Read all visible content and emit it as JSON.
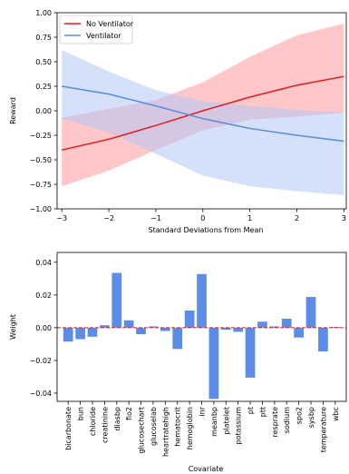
{
  "chart_data": [
    {
      "type": "line",
      "xlabel": "Standard Deviations from Mean",
      "ylabel": "Reward",
      "xlim": [
        -3.1,
        3.05
      ],
      "ylim": [
        -1.0,
        1.0
      ],
      "x_ticks": [
        -3,
        -2,
        -1,
        0,
        1,
        2,
        3
      ],
      "x_tick_labels": [
        "−3",
        "−2",
        "−1",
        "0",
        "1",
        "2",
        "3"
      ],
      "y_ticks": [
        -1.0,
        -0.75,
        -0.5,
        -0.25,
        0.0,
        0.25,
        0.5,
        0.75,
        1.0
      ],
      "y_tick_labels": [
        "−1.00",
        "−0.75",
        "−0.50",
        "−0.25",
        "0.00",
        "0.25",
        "0.50",
        "0.75",
        "1.00"
      ],
      "grid": false,
      "legend_position": "top-left",
      "series": [
        {
          "name": "No Ventilator",
          "color": "#e31a1c",
          "band_color": "#ff9999",
          "x": [
            -3,
            -2,
            -1,
            0,
            1,
            2,
            3
          ],
          "y": [
            -0.4,
            -0.29,
            -0.15,
            0.0,
            0.14,
            0.26,
            0.35
          ],
          "lower": [
            -0.77,
            -0.61,
            -0.4,
            -0.2,
            -0.09,
            -0.06,
            -0.02
          ],
          "upper": [
            -0.07,
            0.02,
            0.11,
            0.29,
            0.55,
            0.77,
            0.89
          ]
        },
        {
          "name": "Ventilator",
          "color": "#5b8bd9",
          "band_color": "#b3c6f5",
          "x": [
            -3,
            -2,
            -1,
            0,
            1,
            2,
            3
          ],
          "y": [
            0.25,
            0.17,
            0.05,
            -0.08,
            -0.18,
            -0.25,
            -0.31
          ],
          "lower": [
            -0.08,
            -0.22,
            -0.44,
            -0.66,
            -0.77,
            -0.82,
            -0.86
          ],
          "upper": [
            0.62,
            0.4,
            0.21,
            0.1,
            0.05,
            0.01,
            -0.02
          ]
        }
      ]
    },
    {
      "type": "bar",
      "xlabel": "Covariate",
      "ylabel": "Weight",
      "ylim": [
        -0.045,
        0.046
      ],
      "y_ticks": [
        -0.04,
        -0.02,
        0.0,
        0.02,
        0.04
      ],
      "y_tick_labels": [
        "−0.04",
        "−0.02",
        "0.00",
        "0.02",
        "0.04"
      ],
      "bar_color": "#5b8de8",
      "reference_line": {
        "y": 0,
        "color": "#e31a1c",
        "style": "dashed"
      },
      "categories": [
        "bicarbonate",
        "bun",
        "chloride",
        "creatinine",
        "diasbp",
        "fio2",
        "glucosechart",
        "glucoselab",
        "heartratehigh",
        "hematocrit",
        "hemoglobin",
        "inr",
        "meanbp",
        "platelet",
        "potassium",
        "pt",
        "ptt",
        "resprate",
        "sodium",
        "spo2",
        "sysbp",
        "temperature",
        "wbc"
      ],
      "values": [
        -0.0085,
        -0.007,
        -0.0055,
        0.0015,
        0.0335,
        0.0045,
        -0.004,
        0.0008,
        -0.002,
        -0.013,
        0.0105,
        0.0328,
        -0.0435,
        -0.0012,
        -0.0025,
        -0.0305,
        0.0037,
        0.0008,
        0.0055,
        -0.006,
        0.0188,
        -0.0145,
        0.0005
      ]
    }
  ]
}
